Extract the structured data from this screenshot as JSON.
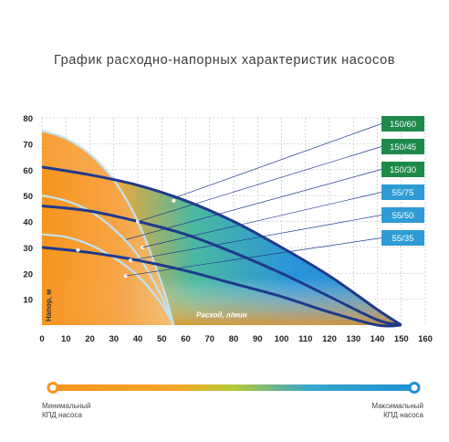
{
  "title": "График расходно-напорных характеристик насосов",
  "chart_data": {
    "type": "line",
    "title": "График расходно-напорных характеристик насосов",
    "xlabel": "Расход, л/мин",
    "ylabel": "Напор, м",
    "xlim": [
      0,
      160
    ],
    "ylim": [
      0,
      80
    ],
    "x_ticks": [
      "0",
      "10",
      "20",
      "30",
      "40",
      "50",
      "60",
      "70",
      "80",
      "90",
      "100",
      "110",
      "120",
      "130",
      "140",
      "150",
      "160"
    ],
    "y_ticks": [
      "10",
      "20",
      "30",
      "40",
      "50",
      "60",
      "70",
      "80"
    ],
    "grid": true,
    "series": [
      {
        "name": "150/60",
        "color": "#1d8a4a",
        "x": [
          0,
          20,
          40,
          60,
          80,
          100,
          120,
          140,
          150
        ],
        "y": [
          61,
          58,
          54,
          48,
          40,
          30,
          19,
          6,
          0
        ]
      },
      {
        "name": "150/45",
        "color": "#1d8a4a",
        "x": [
          0,
          20,
          40,
          60,
          80,
          100,
          120,
          140,
          150
        ],
        "y": [
          46,
          44,
          40,
          35,
          28,
          20,
          11,
          2,
          0
        ]
      },
      {
        "name": "150/30",
        "color": "#1d8a4a",
        "x": [
          0,
          20,
          40,
          60,
          80,
          100,
          120,
          140,
          150
        ],
        "y": [
          30,
          28,
          25,
          21,
          16,
          11,
          5,
          0,
          0
        ]
      },
      {
        "name": "55/75",
        "color": "#2e9bd6",
        "x": [
          0,
          10,
          20,
          30,
          40,
          50,
          55
        ],
        "y": [
          75,
          72,
          66,
          56,
          40,
          16,
          0
        ]
      },
      {
        "name": "55/50",
        "color": "#2e9bd6",
        "x": [
          0,
          10,
          20,
          30,
          40,
          50,
          55
        ],
        "y": [
          50,
          48,
          44,
          37,
          27,
          11,
          0
        ]
      },
      {
        "name": "55/35",
        "color": "#2e9bd6",
        "x": [
          0,
          10,
          20,
          30,
          40,
          50,
          55
        ],
        "y": [
          35,
          34,
          31,
          26,
          19,
          8,
          0
        ]
      }
    ]
  },
  "efficiency_legend": {
    "min_label_line1": "Минимальный",
    "min_label_line2": "КПД насоса",
    "max_label_line1": "Максимальный",
    "max_label_line2": "КПД насоса",
    "min_color": "#f7941d",
    "mid_color": "#b5c934",
    "max_color": "#1f8fd8"
  }
}
